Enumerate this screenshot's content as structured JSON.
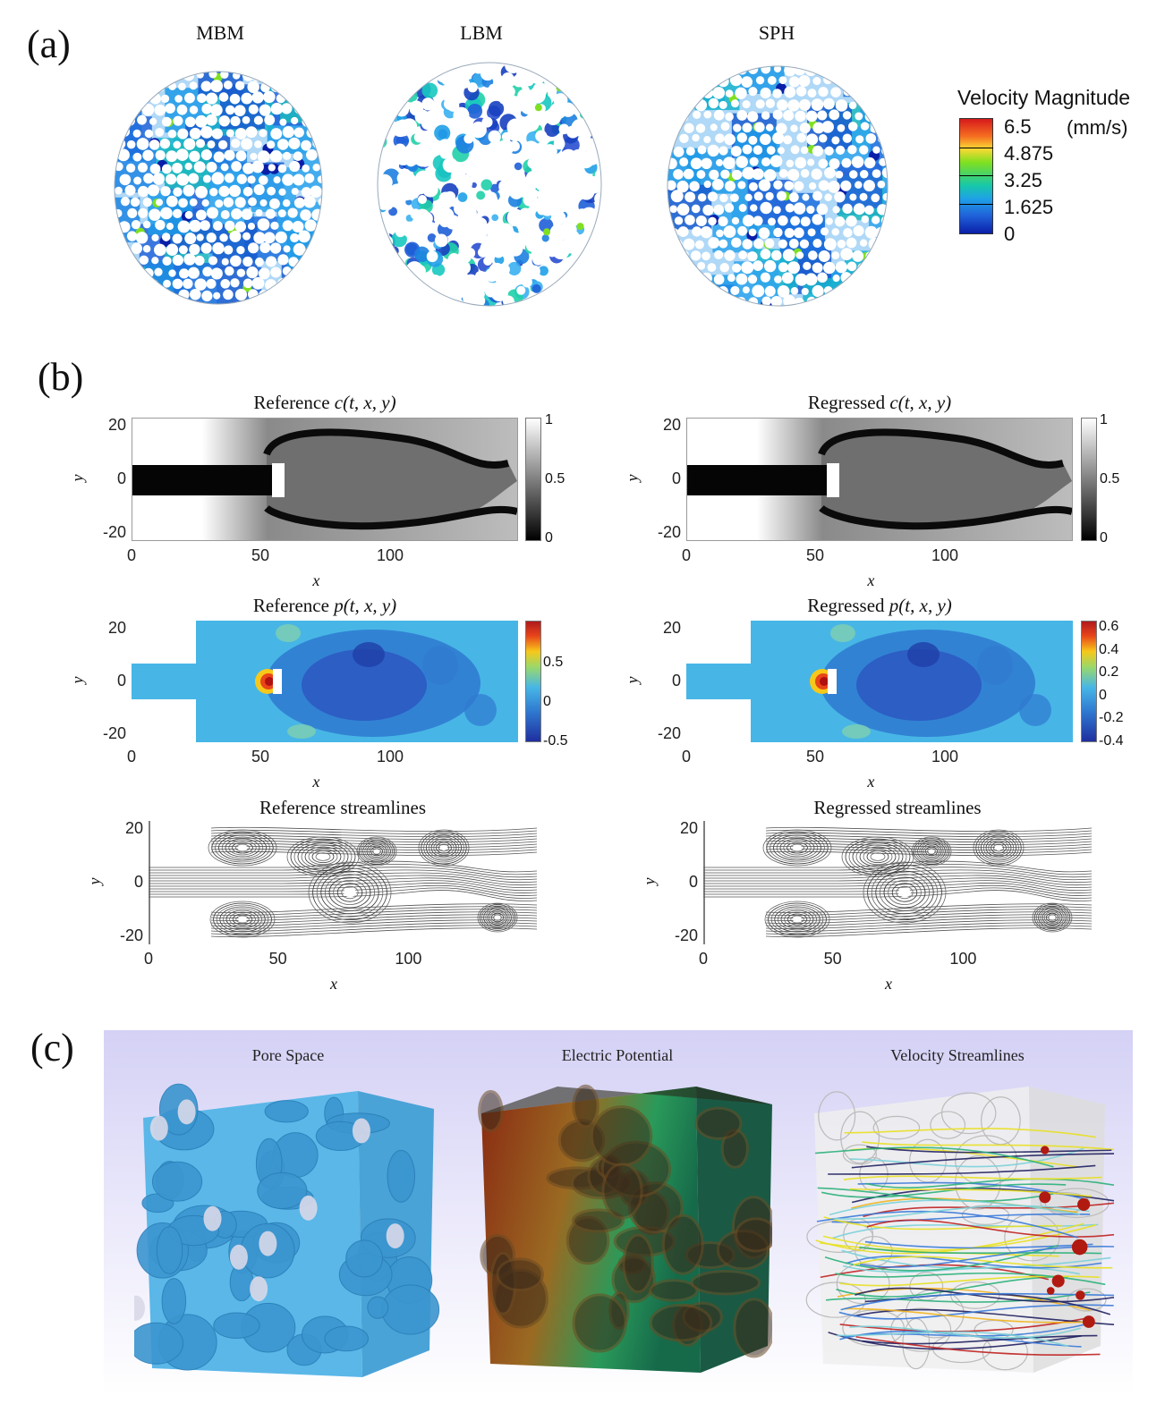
{
  "panel_a": {
    "label": "(a)",
    "methods": [
      "MBM",
      "LBM",
      "SPH"
    ],
    "legend": {
      "title": "Velocity Magnitude",
      "unit": "(mm/s)",
      "ticks": [
        "6.5",
        "4.875",
        "3.25",
        "1.625",
        "0"
      ],
      "colors": [
        "#d7191c",
        "#fdae61",
        "#7fe020",
        "#17c8a8",
        "#1f78d8",
        "#0a1fa8"
      ]
    }
  },
  "panel_b": {
    "label": "(b)",
    "plots": {
      "c_ref": {
        "title": "Reference ",
        "title_math": "c(t, x, y)"
      },
      "c_reg": {
        "title": "Regressed ",
        "title_math": "c(t, x, y)"
      },
      "p_ref": {
        "title": "Reference ",
        "title_math": "p(t, x, y)"
      },
      "p_reg": {
        "title": "Regressed ",
        "title_math": "p(t, x, y)"
      },
      "s_ref": {
        "title": "Reference streamlines"
      },
      "s_reg": {
        "title": "Regressed streamlines"
      }
    },
    "xlabel": "x",
    "ylabel": "y",
    "xticks": [
      "0",
      "50",
      "100"
    ],
    "yticks": [
      "20",
      "0",
      "-20"
    ],
    "cbar_c": [
      "1",
      "0.5",
      "0"
    ],
    "cbar_p_ref": [
      "0.5",
      "0",
      "-0.5"
    ],
    "cbar_p_reg": [
      "0.6",
      "0.4",
      "0.2",
      "0",
      "-0.2",
      "-0.4"
    ]
  },
  "panel_c": {
    "label": "(c)",
    "titles": [
      "Pore Space",
      "Electric Potential",
      "Velocity Streamlines"
    ],
    "colors": {
      "pore": "#5ab7e8",
      "potential_start": "#8a2a12",
      "potential_end": "#1a8a5a"
    }
  }
}
